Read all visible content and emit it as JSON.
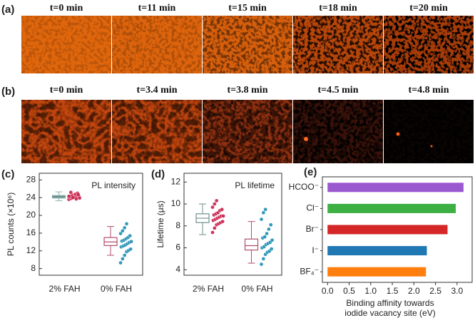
{
  "image_rows": [
    {
      "label": "(a)",
      "frames": [
        "t=0 min",
        "t=11 min",
        "t=15 min",
        "t=18 min",
        "t=20 min"
      ]
    },
    {
      "label": "(b)",
      "frames": [
        "t=0 min",
        "t=3.4 min",
        "t=3.8 min",
        "t=4.5 min",
        "t=4.8 min"
      ]
    }
  ],
  "chart_data": [
    {
      "type": "box",
      "panel_label": "(c)",
      "annotation": "PL intensity",
      "ylabel": "PL counts (×10⁶)",
      "categories": [
        "2% FAH",
        "0% FAH"
      ],
      "boxes": [
        {
          "low": 23.3,
          "q1": 23.9,
          "median": 24.2,
          "q3": 24.5,
          "high": 25.3,
          "box_color": "#8fb3b0",
          "point_color": "#c8204a",
          "points": [
            23.6,
            23.8,
            24.0,
            24.1,
            24.2,
            24.3,
            24.4,
            24.5,
            24.6,
            24.8,
            25.0,
            23.9,
            24.2,
            24.4,
            24.1,
            23.7,
            24.7,
            24.3,
            25.2,
            24.0
          ]
        },
        {
          "low": 11.0,
          "q1": 13.2,
          "median": 14.0,
          "q3": 15.0,
          "high": 17.5,
          "box_color": "#b0506e",
          "point_color": "#1f8fb4",
          "points": [
            9.3,
            10.2,
            11.0,
            11.8,
            12.1,
            12.4,
            12.9,
            13.1,
            13.3,
            13.6,
            13.9,
            14.1,
            14.2,
            14.4,
            14.7,
            15.0,
            15.4,
            15.9,
            16.5,
            17.2,
            18.1
          ]
        }
      ],
      "ylim": [
        6.5,
        29.5
      ],
      "yticks": [
        8,
        12,
        16,
        20,
        24,
        28
      ]
    },
    {
      "type": "box",
      "panel_label": "(d)",
      "annotation": "PL lifetime",
      "ylabel": "Lifetime (μs)",
      "categories": [
        "2% FAH",
        "0% FAH"
      ],
      "boxes": [
        {
          "low": 7.2,
          "q1": 8.3,
          "median": 8.7,
          "q3": 9.1,
          "high": 10.0,
          "box_color": "#6f8f8c",
          "point_color": "#c8204a",
          "points": [
            7.4,
            7.8,
            8.1,
            8.2,
            8.3,
            8.4,
            8.5,
            8.6,
            8.7,
            8.8,
            8.9,
            8.9,
            9.0,
            9.1,
            9.2,
            9.4,
            9.5,
            9.7,
            10.0,
            10.3
          ]
        },
        {
          "low": 4.6,
          "q1": 5.8,
          "median": 6.2,
          "q3": 6.8,
          "high": 8.4,
          "box_color": "#b0506e",
          "point_color": "#1f8fb4",
          "points": [
            4.5,
            5.0,
            5.4,
            5.6,
            5.7,
            5.9,
            6.0,
            6.1,
            6.3,
            6.4,
            6.5,
            6.7,
            6.9,
            7.0,
            7.3,
            7.7,
            8.1,
            8.6,
            9.2,
            9.5
          ]
        }
      ],
      "ylim": [
        3.5,
        12.8
      ],
      "yticks": [
        4,
        6,
        8,
        10,
        12
      ]
    },
    {
      "type": "hbar",
      "panel_label": "(e)",
      "xlabel": [
        "Binding affinity towards",
        "iodide vacancy site (eV)"
      ],
      "categories": [
        "HCOO⁻",
        "Cl⁻",
        "Br⁻",
        "I⁻",
        "BF₄⁻"
      ],
      "values": [
        3.15,
        2.97,
        2.78,
        2.3,
        2.28
      ],
      "colors": [
        "#9b59d0",
        "#3cb043",
        "#d62728",
        "#1f77b4",
        "#ff7f0e"
      ],
      "xlim": [
        -0.12,
        3.35
      ],
      "xticks": [
        {
          "value": 0,
          "label": "0.0"
        },
        0.5,
        {
          "value": 1,
          "label": "1.0"
        },
        1.5,
        {
          "value": 2,
          "label": "2.0"
        },
        2.5,
        {
          "value": 3,
          "label": "3.0"
        }
      ]
    }
  ]
}
